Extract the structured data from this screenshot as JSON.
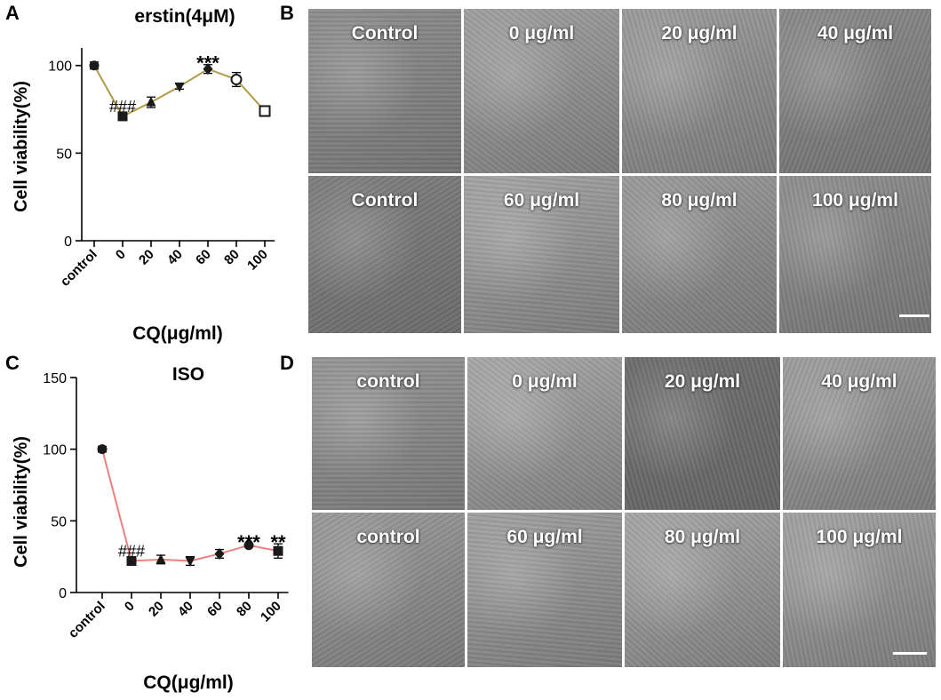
{
  "panels": {
    "a": {
      "letter": "A",
      "title": "erstin(4μM)",
      "ylabel": "Cell viability(%)",
      "xlabel": "CQ(μg/ml)"
    },
    "b": {
      "letter": "B"
    },
    "c": {
      "letter": "C",
      "title": "ISO",
      "ylabel": "Cell viability(%)",
      "xlabel": "CQ(μg/ml)"
    },
    "d": {
      "letter": "D"
    }
  },
  "chart_data": [
    {
      "type": "line",
      "panel": "A",
      "title": "erstin(4μM)",
      "xlabel": "CQ(μg/ml)",
      "ylabel": "Cell viability(%)",
      "categories": [
        "control",
        "0",
        "20",
        "40",
        "60",
        "80",
        "100"
      ],
      "values": [
        100,
        71,
        79,
        88,
        98,
        92,
        74
      ],
      "errors": [
        2,
        1.5,
        3,
        1.5,
        2.5,
        4,
        3
      ],
      "markers": [
        "circle",
        "square",
        "triangle",
        "triangle-down",
        "diamond",
        "circle-open",
        "square-open"
      ],
      "yticks": [
        0,
        50,
        100
      ],
      "ylim": [
        0,
        110
      ],
      "line_color": "#b39b45",
      "annotations": [
        {
          "category": "0",
          "text": "###"
        },
        {
          "category": "60",
          "text": "***"
        }
      ],
      "grid": false
    },
    {
      "type": "line",
      "panel": "C",
      "title": "ISO",
      "xlabel": "CQ(μg/ml)",
      "ylabel": "Cell viability(%)",
      "categories": [
        "control",
        "0",
        "20",
        "40",
        "60",
        "80",
        "100"
      ],
      "values": [
        100,
        22,
        23,
        22,
        27,
        33,
        29
      ],
      "errors": [
        2,
        2,
        3,
        3,
        3,
        1,
        5
      ],
      "markers": [
        "circle",
        "square",
        "triangle",
        "triangle-down",
        "diamond",
        "circle",
        "square"
      ],
      "yticks": [
        0,
        50,
        100,
        150
      ],
      "ylim": [
        0,
        150
      ],
      "line_color": "#f08080",
      "annotations": [
        {
          "category": "0",
          "text": "###"
        },
        {
          "category": "80",
          "text": "***"
        },
        {
          "category": "100",
          "text": "**"
        }
      ],
      "grid": false
    }
  ],
  "micrographs_b": [
    {
      "label": "Control",
      "tone": "#8e8e8e"
    },
    {
      "label": "0 μg/ml",
      "tone": "#a0a0a0"
    },
    {
      "label": "20 μg/ml",
      "tone": "#9c9c9c"
    },
    {
      "label": "40 μg/ml",
      "tone": "#8a8a8a"
    },
    {
      "label": "Control",
      "tone": "#7e7e7e"
    },
    {
      "label": "60 μg/ml",
      "tone": "#a4a4a4"
    },
    {
      "label": "80 μg/ml",
      "tone": "#9a9a9a"
    },
    {
      "label": "100 μg/ml",
      "tone": "#8f8f8f"
    }
  ],
  "micrographs_d": [
    {
      "label": "control",
      "tone": "#969696"
    },
    {
      "label": "0 μg/ml",
      "tone": "#a8a8a8"
    },
    {
      "label": "20 μg/ml",
      "tone": "#6e6e6e"
    },
    {
      "label": "40 μg/ml",
      "tone": "#9e9e9e"
    },
    {
      "label": "control",
      "tone": "#9a9a9a"
    },
    {
      "label": "60 μg/ml",
      "tone": "#a0a0a0"
    },
    {
      "label": "80 μg/ml",
      "tone": "#a6a6a6"
    },
    {
      "label": "100 μg/ml",
      "tone": "#a2a2a2"
    }
  ]
}
